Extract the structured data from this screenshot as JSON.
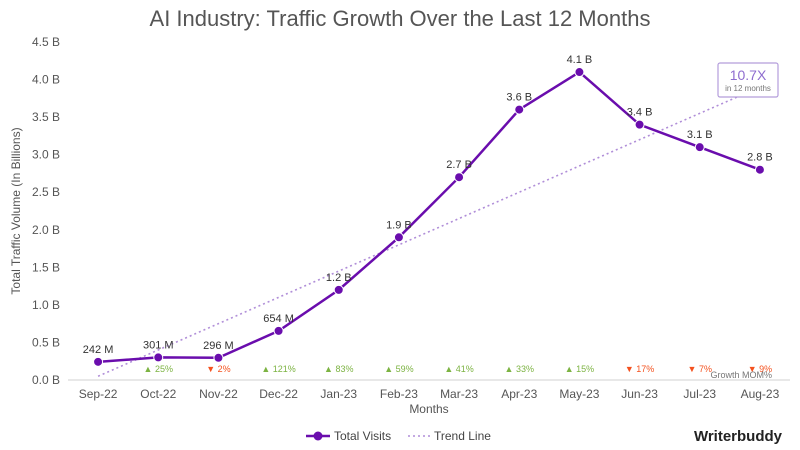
{
  "chart_data": {
    "type": "line",
    "title": "AI Industry: Traffic Growth Over the Last 12 Months",
    "xlabel": "Months",
    "ylabel": "Total Traffic Volume (In Billions)",
    "ylim": [
      0,
      4.5
    ],
    "yticks": [
      {
        "v": 0,
        "label": "0.0 B"
      },
      {
        "v": 0.5,
        "label": "0.5 B"
      },
      {
        "v": 1.0,
        "label": "1.0 B"
      },
      {
        "v": 1.5,
        "label": "1.5 B"
      },
      {
        "v": 2.0,
        "label": "2.0 B"
      },
      {
        "v": 2.5,
        "label": "2.5 B"
      },
      {
        "v": 3.0,
        "label": "3.0 B"
      },
      {
        "v": 3.5,
        "label": "3.5 B"
      },
      {
        "v": 4.0,
        "label": "4.0 B"
      },
      {
        "v": 4.5,
        "label": "4.5 B"
      }
    ],
    "categories": [
      "Sep-22",
      "Oct-22",
      "Nov-22",
      "Dec-22",
      "Jan-23",
      "Feb-23",
      "Mar-23",
      "Apr-23",
      "May-23",
      "Jun-23",
      "Jul-23",
      "Aug-23"
    ],
    "series": [
      {
        "name": "Total Visits",
        "color": "#6a0dad",
        "values": [
          0.242,
          0.301,
          0.296,
          0.654,
          1.2,
          1.9,
          2.7,
          3.6,
          4.1,
          3.4,
          3.1,
          2.8
        ],
        "labels": [
          "242 M",
          "301 M",
          "296 M",
          "654 M",
          "1.2 B",
          "1.9 B",
          "2.7 B",
          "3.6 B",
          "4.1 B",
          "3.4 B",
          "3.1 B",
          "2.8 B"
        ]
      }
    ],
    "trend": {
      "name": "Trend Line",
      "color": "#b08ed8",
      "start": 0.05,
      "end": 3.9
    },
    "growth_mom": {
      "title": "Growth MOM%",
      "values": [
        "",
        "25%",
        "2%",
        "121%",
        "83%",
        "59%",
        "41%",
        "33%",
        "15%",
        "17%",
        "7%",
        "9%"
      ],
      "direction": [
        "",
        "up",
        "down",
        "up",
        "up",
        "up",
        "up",
        "up",
        "up",
        "down",
        "down",
        "down"
      ]
    },
    "callout": {
      "value": "10.7X",
      "sub": "in 12 months",
      "border": "#b39ddb"
    },
    "legend": {
      "position": "bottom-center"
    }
  },
  "brand": "Writerbuddy"
}
